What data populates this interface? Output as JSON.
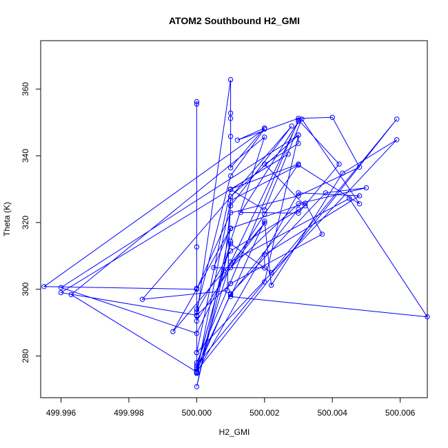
{
  "chart_data": {
    "type": "line",
    "title": "ATOM2 Southbound H2_GMI",
    "xlabel": "H2_GMI",
    "ylabel": "Theta (K)",
    "xlim": [
      499.9954,
      500.0068
    ],
    "ylim": [
      267.5,
      374.5
    ],
    "x_ticks": [
      499.996,
      499.998,
      500.0,
      500.002,
      500.004,
      500.006
    ],
    "y_ticks": [
      280,
      300,
      320,
      340,
      360
    ],
    "x_tick_labels": [
      "499.996",
      "499.998",
      "500.000",
      "500.002",
      "500.004",
      "500.006"
    ],
    "y_tick_labels": [
      "280",
      "300",
      "320",
      "340",
      "360"
    ],
    "grid": false,
    "legend": "none",
    "point_style": "open-circle",
    "line_color": "#0000ff",
    "series": [
      {
        "x": [
          500.0,
          500.0,
          500.0,
          500.0,
          500.0,
          500.001,
          500.001,
          500.001,
          500.001,
          500.001,
          500.002,
          500.0012,
          500.003,
          500.004,
          500.0048,
          500.003,
          500.001,
          500.0,
          499.9955,
          500.002,
          500.001,
          500.0,
          500.0,
          500.002,
          500.003,
          500.001,
          500.0,
          500.0,
          500.003,
          500.0042,
          500.003,
          500.0013,
          500.003,
          500.0,
          499.996,
          500.003,
          500.003,
          500.002,
          500.0032,
          500.001,
          500.0,
          500.0,
          499.9963,
          500.002,
          500.001,
          500.0,
          500.0,
          500.0059,
          500.0043,
          500.0022,
          500.002,
          500.001,
          500.0068,
          500.0045,
          500.001,
          500.0,
          500.0,
          500.002,
          500.003,
          500.001,
          500.0009,
          499.9984,
          500.0028,
          500.001,
          500.0008,
          500.0,
          500.001,
          500.0032,
          500.0037,
          500.001,
          500.0,
          499.996,
          500.0027,
          500.001,
          500.002,
          500.0031,
          500.0048,
          500.003,
          500.001,
          500.0,
          500.003,
          500.0048,
          500.002,
          500.002,
          500.0005,
          500.001,
          499.9993,
          500.002,
          500.001,
          500.003,
          500.005,
          500.0038,
          500.001,
          500.0,
          500.0059,
          500.0022,
          500.001,
          500.0,
          500.001,
          500.003
        ],
        "y": [
          356.2,
          355.5,
          312.7,
          300.3,
          292.0,
          362.8,
          352.8,
          351.2,
          345.8,
          336.4,
          348.3,
          344.7,
          351.2,
          351.5,
          336.6,
          328.0,
          322.9,
          300.0,
          300.8,
          348.0,
          334.0,
          294.0,
          290.5,
          322.5,
          337.5,
          330.0,
          281.0,
          278.0,
          350.7,
          337.5,
          322.8,
          323.0,
          350.3,
          286.8,
          300.5,
          346.2,
          343.7,
          337.5,
          325.0,
          311.5,
          293.2,
          275.2,
          298.4,
          345.6,
          314.4,
          276.0,
          281.0,
          344.8,
          334.8,
          301.2,
          320.4,
          297.8,
          291.7,
          327.2,
          308.2,
          274.8,
          277.3,
          302.2,
          346.2,
          327.8,
          299.6,
          297.0,
          348.9,
          325.0,
          305.5,
          270.8,
          318.3,
          325.8,
          316.5,
          301.7,
          292.2,
          299.0,
          340.5,
          329.9,
          323.8,
          351.0,
          325.6,
          337.2,
          326.6,
          275.0,
          328.9,
          328.0,
          310.4,
          306.4,
          306.5,
          318.2,
          287.3,
          319.8,
          306.5,
          325.6,
          330.4,
          328.9,
          298.7,
          275.5,
          351.0,
          305.0,
          313.6,
          276.6,
          298.4,
          324.0
        ]
      }
    ]
  }
}
